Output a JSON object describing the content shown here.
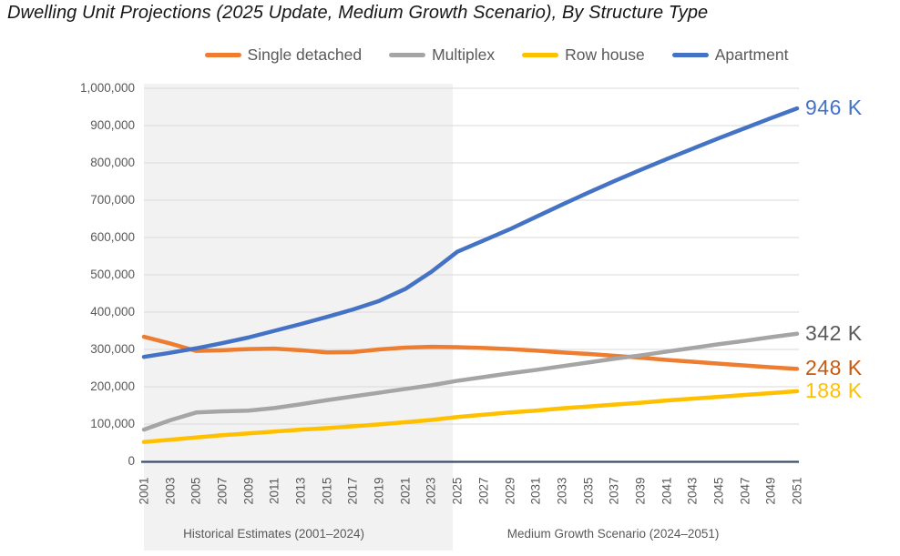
{
  "title": "Dwelling Unit Projections (2025 Update, Medium Growth Scenario), By Structure Type",
  "colors": {
    "single_detached": "#ED7D31",
    "multiplex": "#A5A5A5",
    "row_house": "#FFC000",
    "apartment": "#4472C4",
    "band": "#F2F2F2",
    "gridline": "#D9D9D9",
    "axis_line": "#3C4D68",
    "tick_text": "#595959",
    "title_text": "#161616"
  },
  "chart_data": {
    "type": "line",
    "title": "Dwelling Unit Projections (2025 Update, Medium Growth Scenario), By Structure Type",
    "xlabel": "",
    "ylabel": "",
    "xlim": [
      2001,
      2051
    ],
    "ylim": [
      0,
      1000000
    ],
    "grid": true,
    "legend_position": "top",
    "x": [
      2001,
      2003,
      2005,
      2007,
      2009,
      2011,
      2013,
      2015,
      2017,
      2019,
      2021,
      2023,
      2025,
      2027,
      2029,
      2031,
      2033,
      2035,
      2037,
      2039,
      2041,
      2043,
      2045,
      2047,
      2049,
      2051
    ],
    "x_tick_labels": [
      "2001",
      "2003",
      "2005",
      "2007",
      "2009",
      "2011",
      "2013",
      "2015",
      "2017",
      "2019",
      "2021",
      "2023",
      "2025",
      "2027",
      "2029",
      "2031",
      "2033",
      "2035",
      "2037",
      "2039",
      "2041",
      "2043",
      "2045",
      "2047",
      "2049",
      "2051"
    ],
    "y_ticks": [
      0,
      100000,
      200000,
      300000,
      400000,
      500000,
      600000,
      700000,
      800000,
      900000,
      1000000
    ],
    "y_tick_labels": [
      "0",
      "100,000",
      "200,000",
      "300,000",
      "400,000",
      "500,000",
      "600,000",
      "700,000",
      "800,000",
      "900,000",
      "1,000,000"
    ],
    "series": [
      {
        "name": "Single detached",
        "color": "#ED7D31",
        "end_label": "248 K",
        "end_label_color": "#C55A11",
        "values": [
          334000,
          316000,
          296000,
          298000,
          301000,
          302000,
          298000,
          292000,
          293000,
          300000,
          305000,
          307000,
          306000,
          304000,
          301000,
          297000,
          292000,
          288000,
          283000,
          278000,
          272000,
          267000,
          262000,
          257000,
          252000,
          248000
        ]
      },
      {
        "name": "Multiplex",
        "color": "#A5A5A5",
        "end_label": "342 K",
        "end_label_color": "#595959",
        "values": [
          85000,
          110000,
          131000,
          134000,
          136000,
          143000,
          153000,
          164000,
          174000,
          184000,
          194000,
          204000,
          216000,
          226000,
          236000,
          245000,
          255000,
          265000,
          275000,
          284000,
          294000,
          304000,
          314000,
          323000,
          333000,
          342000
        ]
      },
      {
        "name": "Row house",
        "color": "#FFC000",
        "end_label": "188 K",
        "end_label_color": "#FFC000",
        "values": [
          52000,
          58000,
          64000,
          70000,
          75000,
          80000,
          85000,
          89000,
          94000,
          99000,
          105000,
          111000,
          119000,
          125000,
          131000,
          136000,
          142000,
          147000,
          152000,
          157000,
          163000,
          168000,
          173000,
          178000,
          183000,
          188000
        ]
      },
      {
        "name": "Apartment",
        "color": "#4472C4",
        "end_label": "946 K",
        "end_label_color": "#4472C4",
        "values": [
          280000,
          291000,
          303000,
          317000,
          332000,
          350000,
          368000,
          387000,
          407000,
          430000,
          462000,
          508000,
          562000,
          592000,
          622000,
          655000,
          688000,
          720000,
          751000,
          781000,
          810000,
          838000,
          866000,
          893000,
          920000,
          946000
        ]
      }
    ],
    "regions": [
      {
        "label": "Historical Estimates (2001–2024)",
        "x_start": 2001,
        "x_end": 2024.65,
        "shaded": true
      },
      {
        "label": "Medium Growth Scenario (2024–2051)",
        "x_start": 2024.65,
        "x_end": 2051,
        "shaded": false
      }
    ]
  }
}
